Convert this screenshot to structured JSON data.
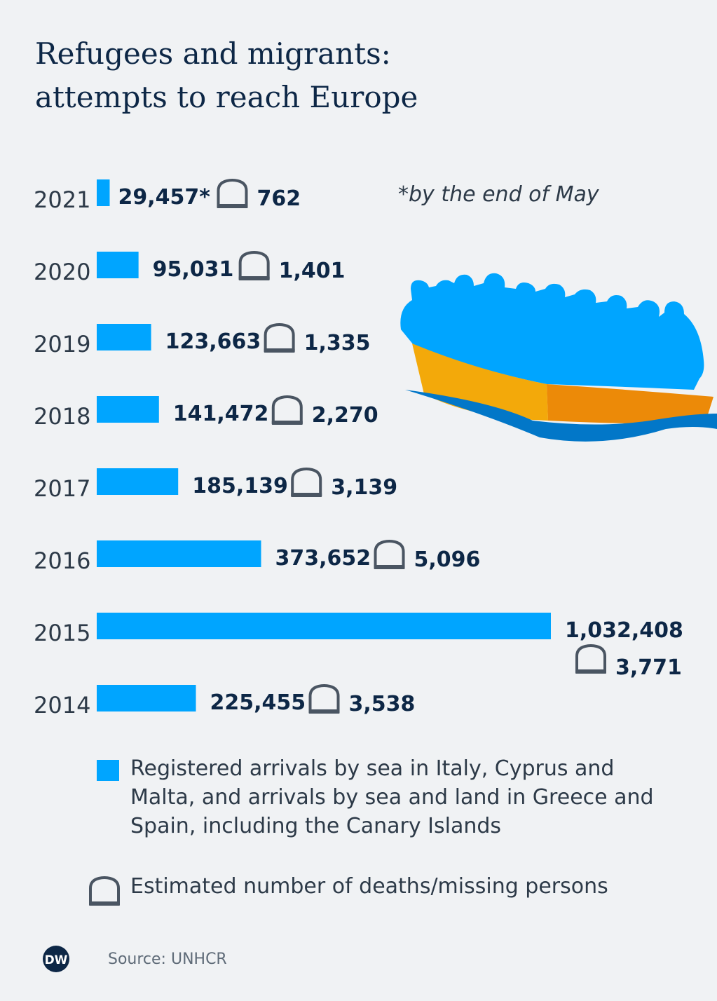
{
  "title": {
    "line1": "Refugees and migrants:",
    "line2": "attempts to reach Europe"
  },
  "note": "*by the end of May",
  "chart_data": {
    "type": "bar",
    "orientation": "horizontal",
    "categories": [
      "2021",
      "2020",
      "2019",
      "2018",
      "2017",
      "2016",
      "2015",
      "2014"
    ],
    "series": [
      {
        "name": "Registered arrivals by sea in Italy, Cyprus and Malta, and arrivals by sea and land in Greece and Spain, including the Canary Islands",
        "values": [
          29457,
          95031,
          123663,
          141472,
          185139,
          373652,
          1032408,
          225455
        ],
        "labels": [
          "29,457*",
          "95,031",
          "123,663",
          "141,472",
          "185,139",
          "373,652",
          "1,032,408",
          "225,455"
        ],
        "color": "#00a5ff"
      },
      {
        "name": "Estimated number of deaths/missing persons",
        "values": [
          762,
          1401,
          1335,
          2270,
          3139,
          5096,
          3771,
          3538
        ],
        "labels": [
          "762",
          "1,401",
          "1,335",
          "2,270",
          "3,139",
          "5,096",
          "3,771",
          "3,538"
        ],
        "icon": "coffin-icon",
        "color": "#4a5562"
      }
    ],
    "title": "Refugees and migrants: attempts to reach Europe",
    "xlabel": "",
    "ylabel": "",
    "grid": false,
    "legend": "bottom"
  },
  "legend": {
    "arrivals": "Registered arrivals by sea in Italy, Cyprus and Malta, and arrivals by sea and land in Greece and Spain, including the Canary Islands",
    "deaths": "Estimated number of deaths/missing persons"
  },
  "footer": {
    "logo": "DW",
    "source": "Source: UNHCR"
  },
  "colors": {
    "bar": "#00a5ff",
    "text_dark": "#0d2746",
    "icon": "#4a5562",
    "boat_yellow": "#f3a90a",
    "boat_orange": "#ec8a08",
    "wave": "#0277c8",
    "background": "#f0f2f4"
  },
  "illustration": "boat-with-refugees-icon"
}
